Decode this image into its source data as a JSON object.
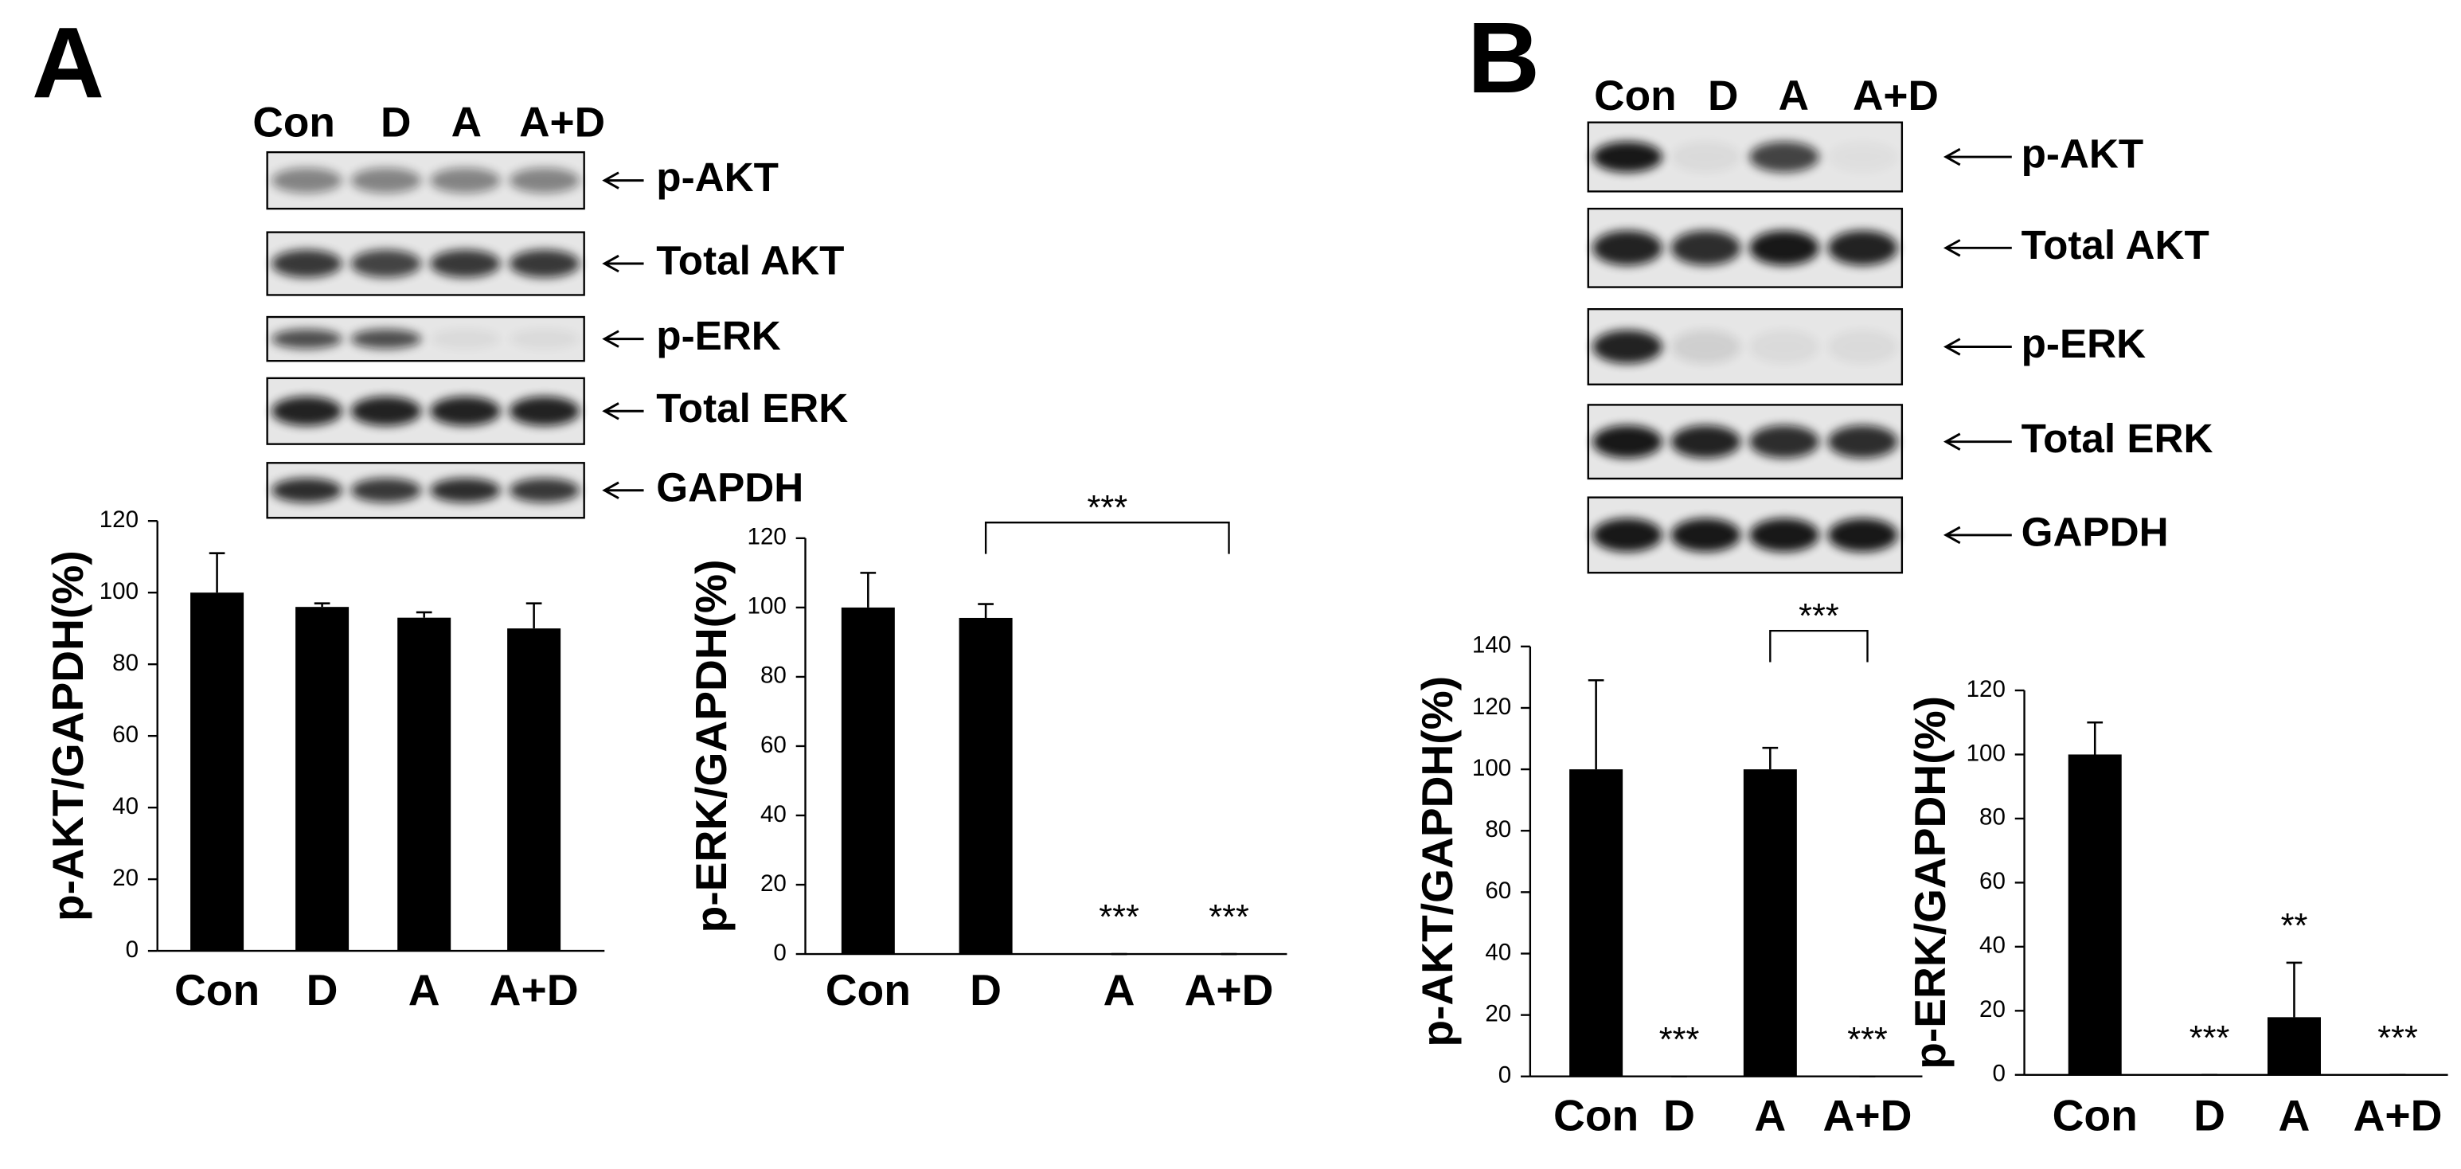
{
  "panels": [
    {
      "label": "A",
      "lanes": [
        "Con",
        "D",
        "A",
        "A+D"
      ],
      "bands": [
        "p-AKT",
        "Total AKT",
        "p-ERK",
        "Total ERK",
        "GAPDH"
      ]
    },
    {
      "label": "B",
      "lanes": [
        "Con",
        "D",
        "A",
        "A+D"
      ],
      "bands": [
        "p-AKT",
        "Total AKT",
        "p-ERK",
        "Total ERK",
        "GAPDH"
      ]
    }
  ],
  "chart_data": [
    {
      "type": "bar",
      "y_label": "p-AKT/GAPDH(%)",
      "categories": [
        "Con",
        "D",
        "A",
        "A+D"
      ],
      "values": [
        100,
        96,
        93,
        90
      ],
      "errors": [
        11,
        1,
        1.5,
        7
      ],
      "color": "#000000",
      "ylim": [
        0,
        120
      ],
      "yticks": [
        0,
        20,
        40,
        60,
        80,
        100,
        120
      ]
    },
    {
      "type": "bar",
      "y_label": "p-ERK/GAPDH(%)",
      "categories": [
        "Con",
        "D",
        "A",
        "A+D"
      ],
      "values": [
        100,
        97,
        0,
        0
      ],
      "errors": [
        10,
        4,
        0,
        0
      ],
      "color": "#000000",
      "ylim": [
        0,
        120
      ],
      "yticks": [
        0,
        20,
        40,
        60,
        80,
        100,
        120
      ],
      "significance": [
        null,
        null,
        "***",
        "***"
      ],
      "bracket": {
        "from": "D",
        "to": "A+D",
        "label": "***"
      }
    },
    {
      "type": "bar",
      "y_label": "p-AKT/GAPDH(%)",
      "categories": [
        "Con",
        "D",
        "A",
        "A+D"
      ],
      "values": [
        100,
        0,
        100,
        0
      ],
      "errors": [
        29,
        0,
        7,
        0
      ],
      "color": "#000000",
      "ylim": [
        0,
        140
      ],
      "yticks": [
        0,
        20,
        40,
        60,
        80,
        100,
        120,
        140
      ],
      "significance": [
        null,
        "***",
        null,
        "***"
      ],
      "bracket": {
        "from": "A",
        "to": "A+D",
        "label": "***"
      }
    },
    {
      "type": "bar",
      "y_label": "p-ERK/GAPDH(%)",
      "categories": [
        "Con",
        "D",
        "A",
        "A+D"
      ],
      "values": [
        100,
        0,
        18,
        0
      ],
      "errors": [
        10,
        0,
        17,
        0
      ],
      "color": "#000000",
      "ylim": [
        0,
        120
      ],
      "yticks": [
        0,
        20,
        40,
        60,
        80,
        100,
        120
      ],
      "significance": [
        null,
        "***",
        "**",
        "***"
      ]
    }
  ]
}
